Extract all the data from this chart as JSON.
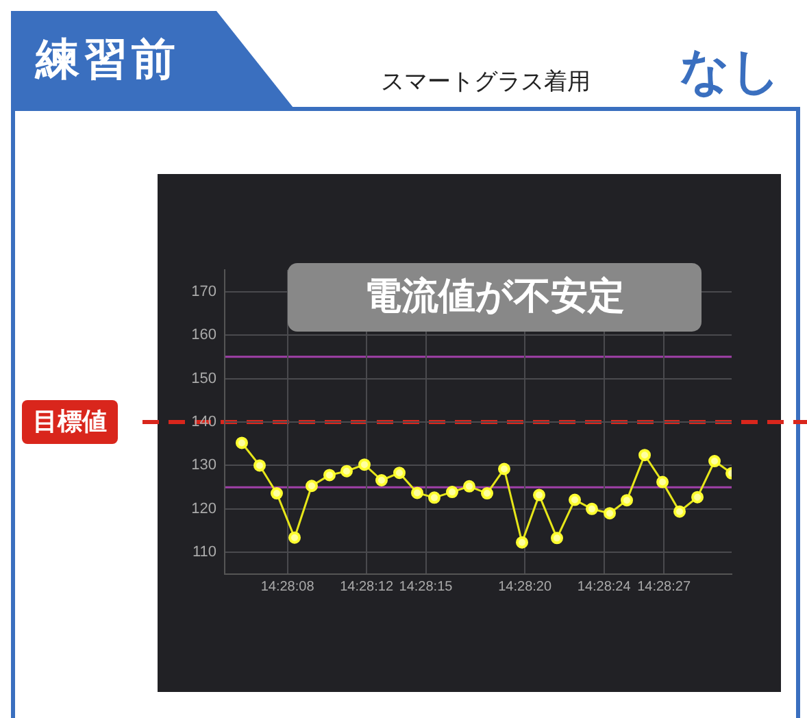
{
  "chart_data": {
    "type": "line",
    "title": "練習前",
    "subtitle": "スマートグラス着用",
    "annotations": [
      "なし",
      "電流値が不安定"
    ],
    "x": [
      14.46825,
      14.4685,
      14.46874,
      14.46899,
      14.46923,
      14.46948,
      14.46972,
      14.46997,
      14.47021,
      14.47046,
      14.47071,
      14.47095,
      14.4712,
      14.47144,
      14.47169,
      14.47193,
      14.47218,
      14.47242,
      14.47267,
      14.47292,
      14.47316,
      14.47341,
      14.47365,
      14.4739,
      14.47415,
      14.47439,
      14.47464,
      14.47488,
      14.47512
    ],
    "series": [
      {
        "color": "#e6e619",
        "values": [
          135.2,
          130,
          123.6,
          113.4,
          125.3,
          127.8,
          128.7,
          130.2,
          126.6,
          128.3,
          123.7,
          122.6,
          123.9,
          125.2,
          123.6,
          129.2,
          112.3,
          123.2,
          113.3,
          122.1,
          120,
          119,
          122,
          132.4,
          126.2,
          119.4,
          122.7,
          131,
          128.2
        ]
      }
    ],
    "xlim": [
      14.46801,
      14.47512
    ],
    "xticks": [
      {
        "value": 14.46889,
        "label": "14:28:08"
      },
      {
        "value": 14.47,
        "label": "14:28:12"
      },
      {
        "value": 14.47083,
        "label": "14:28:15"
      },
      {
        "value": 14.47222,
        "label": "14:28:20"
      },
      {
        "value": 14.47333,
        "label": "14:28:24"
      },
      {
        "value": 14.47417,
        "label": "14:28:27"
      }
    ],
    "ylim": [
      105,
      175
    ],
    "yticks": [
      110,
      120,
      130,
      140,
      150,
      160,
      170
    ],
    "ref_lines": [
      {
        "axis": "y",
        "value": 155,
        "color": "#a040a8",
        "line_style": "solid"
      },
      {
        "axis": "y",
        "value": 125,
        "color": "#a040a8",
        "line_style": "solid"
      },
      {
        "axis": "y",
        "value": 140,
        "label": "目標値",
        "color": "#d9261c",
        "line_style": "dashed"
      }
    ],
    "grid": true,
    "legend": false,
    "marker": "circle",
    "line_style": "solid"
  }
}
